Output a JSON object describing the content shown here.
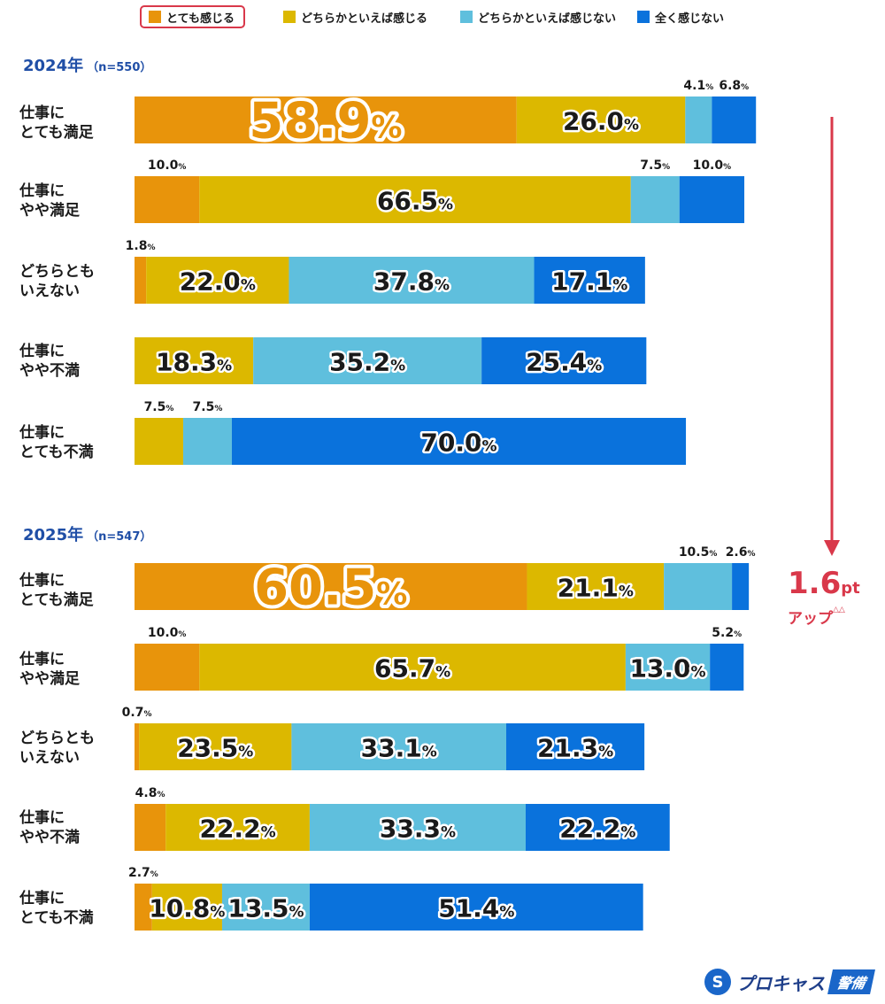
{
  "legend": [
    {
      "label": "とても感じる",
      "color": "#e8940b",
      "highlighted": true
    },
    {
      "label": "どちらかといえば感じる",
      "color": "#dcb800"
    },
    {
      "label": "どちらかといえば感じない",
      "color": "#5fbfdd"
    },
    {
      "label": "全く感じない",
      "color": "#0a72dc"
    }
  ],
  "chart_data": [
    {
      "type": "bar",
      "stacked": true,
      "orientation": "horizontal",
      "title": "2024年",
      "n_label": "（n=550）",
      "categories": [
        "仕事にとても満足",
        "仕事にやや満足",
        "どちらともいえない",
        "仕事にやや不満",
        "仕事にとても不満"
      ],
      "series": [
        {
          "name": "とても感じる",
          "values": [
            58.9,
            10.0,
            1.8,
            0,
            0
          ]
        },
        {
          "name": "どちらかといえば感じる",
          "values": [
            26.0,
            66.5,
            22.0,
            18.3,
            7.5
          ]
        },
        {
          "name": "どちらかといえば感じない",
          "values": [
            4.1,
            7.5,
            37.8,
            35.2,
            7.5
          ]
        },
        {
          "name": "全く感じない",
          "values": [
            6.8,
            10.0,
            17.1,
            25.4,
            70.0
          ]
        }
      ],
      "xlim": [
        0,
        100
      ]
    },
    {
      "type": "bar",
      "stacked": true,
      "orientation": "horizontal",
      "title": "2025年",
      "n_label": "（n=547）",
      "categories": [
        "仕事にとても満足",
        "仕事にやや満足",
        "どちらともいえない",
        "仕事にやや不満",
        "仕事にとても不満"
      ],
      "series": [
        {
          "name": "とても感じる",
          "values": [
            60.5,
            10.0,
            0.7,
            4.8,
            2.7
          ]
        },
        {
          "name": "どちらかといえば感じる",
          "values": [
            21.1,
            65.7,
            23.5,
            22.2,
            10.8
          ]
        },
        {
          "name": "どちらかといえば感じない",
          "values": [
            10.5,
            13.0,
            33.1,
            33.3,
            13.5
          ]
        },
        {
          "name": "全く感じない",
          "values": [
            2.6,
            5.2,
            21.3,
            22.2,
            51.4
          ]
        }
      ],
      "xlim": [
        0,
        100
      ]
    }
  ],
  "row_labels": [
    [
      "仕事に",
      "とても満足"
    ],
    [
      "仕事に",
      "やや満足"
    ],
    [
      "どちらとも",
      "いえない"
    ],
    [
      "仕事に",
      "やや不満"
    ],
    [
      "仕事に",
      "とても不満"
    ]
  ],
  "annotation": {
    "value": "1.6",
    "unit": "pt",
    "label": "アップ",
    "tri": "△△"
  },
  "logo": {
    "mark": "S",
    "text": "プロキャス",
    "badge": "警備"
  }
}
